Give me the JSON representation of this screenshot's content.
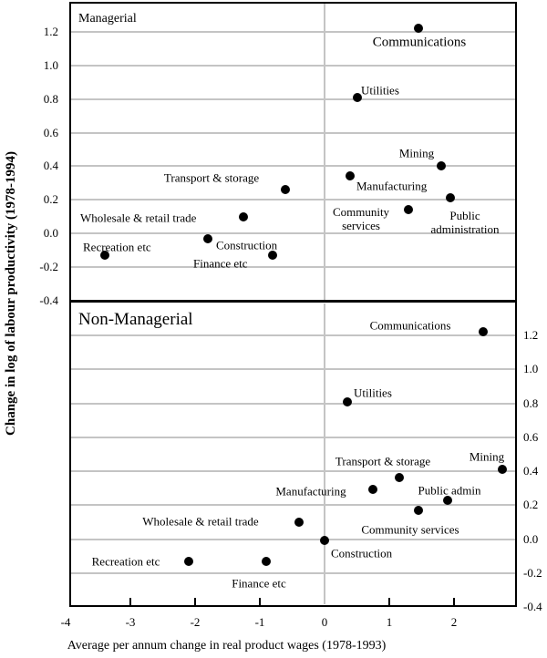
{
  "figure": {
    "y_axis_title": "Change in log of labour productivity (1978-1994)",
    "x_axis_title": "Average per annum change in real product wages (1978-1993)",
    "x_tick_labels": [
      "-4",
      "-3",
      "-2",
      "-1",
      "0",
      "1",
      "2"
    ],
    "x_tick_values": [
      -4,
      -3,
      -2,
      -1,
      0,
      1,
      2
    ],
    "y_tick_labels": [
      "1.2",
      "1.0",
      "0.8",
      "0.6",
      "0.4",
      "0.2",
      "0.0",
      "-0.2",
      "-0.4"
    ],
    "y_tick_values": [
      1.2,
      1.0,
      0.8,
      0.6,
      0.4,
      0.2,
      0.0,
      -0.2,
      -0.4
    ],
    "marker_color": "#000000",
    "gridline_color": "#c4c4c4"
  },
  "chart_data": [
    {
      "type": "scatter",
      "title": "Managerial",
      "xlabel": "Average per annum change in real product wages (1978-1993)",
      "ylabel": "Change in log of labour productivity (1978-1994)",
      "xlim": [
        -3.95,
        2.97
      ],
      "ylim": [
        -0.4,
        1.38
      ],
      "grid": true,
      "points": [
        {
          "label": "Communications",
          "x": 1.45,
          "y": 1.22
        },
        {
          "label": "Utilities",
          "x": 0.5,
          "y": 0.81
        },
        {
          "label": "Mining",
          "x": 1.8,
          "y": 0.4
        },
        {
          "label": "Manufacturing",
          "x": 0.4,
          "y": 0.34
        },
        {
          "label": "Transport & storage",
          "x": -0.6,
          "y": 0.26
        },
        {
          "label": "Public administration",
          "x": 1.95,
          "y": 0.21
        },
        {
          "label": "Community services",
          "x": 1.3,
          "y": 0.14
        },
        {
          "label": "Wholesale & retail trade",
          "x": -1.25,
          "y": 0.1
        },
        {
          "label": "Construction",
          "x": -1.8,
          "y": -0.03
        },
        {
          "label": "Recreation etc",
          "x": -3.4,
          "y": -0.13
        },
        {
          "label": "Finance etc",
          "x": -0.8,
          "y": -0.13
        }
      ]
    },
    {
      "type": "scatter",
      "title": "Non-Managerial",
      "xlabel": "Average per annum change in real product wages (1978-1993)",
      "ylabel": "Change in log of labour productivity (1978-1994)",
      "xlim": [
        -3.95,
        2.97
      ],
      "ylim": [
        -0.4,
        1.39
      ],
      "grid": true,
      "points": [
        {
          "label": "Communications",
          "x": 2.45,
          "y": 1.22
        },
        {
          "label": "Utilities",
          "x": 0.35,
          "y": 0.81
        },
        {
          "label": "Mining",
          "x": 2.75,
          "y": 0.41
        },
        {
          "label": "Transport & storage",
          "x": 1.15,
          "y": 0.36
        },
        {
          "label": "Manufacturing",
          "x": 0.75,
          "y": 0.29
        },
        {
          "label": "Public admin",
          "x": 1.9,
          "y": 0.23
        },
        {
          "label": "Community services",
          "x": 1.45,
          "y": 0.17
        },
        {
          "label": "Wholesale & retail trade",
          "x": -0.4,
          "y": 0.1
        },
        {
          "label": "Construction",
          "x": 0.0,
          "y": -0.01
        },
        {
          "label": "Recreation etc",
          "x": -2.1,
          "y": -0.13
        },
        {
          "label": "Finance etc",
          "x": -0.9,
          "y": -0.13
        }
      ]
    }
  ]
}
